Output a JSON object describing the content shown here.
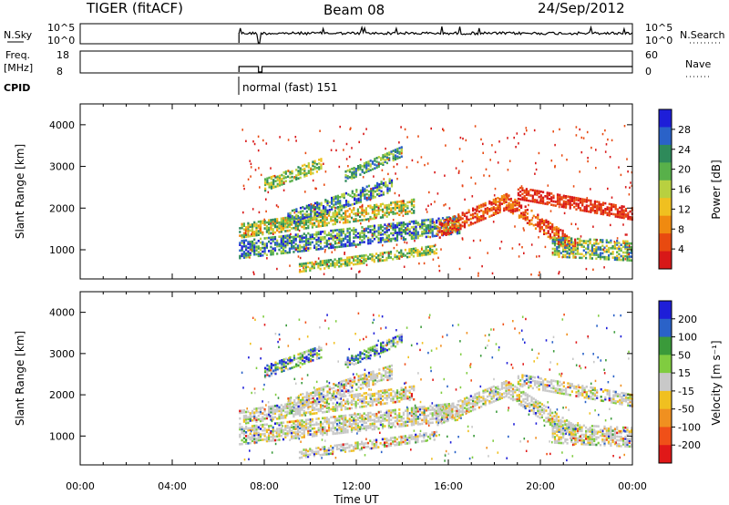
{
  "header": {
    "title": "TIGER (fitACF)",
    "beam": "Beam 08",
    "date": "24/Sep/2012"
  },
  "top_panels": {
    "nsky_label": "N.Sky",
    "nsky_ticks": [
      "10^5",
      "10^0"
    ],
    "nsearch_label": "N.Search",
    "nsearch_ticks": [
      "10^5",
      "10^0"
    ],
    "freq_label": "Freq.",
    "freq_unit": "[MHz]",
    "freq_ticks": [
      "18",
      "8"
    ],
    "nave_label": "Nave",
    "nave_ticks": [
      "60",
      "0"
    ],
    "cpid_label": "CPID",
    "cpid_text": "normal (fast) 151"
  },
  "colors": {
    "power_scale": [
      "#1e1ed8",
      "#2a62c8",
      "#2e8a5a",
      "#58b04a",
      "#b8d040",
      "#f0c020",
      "#f08a10",
      "#e84a10",
      "#d81818"
    ],
    "velocity_scale": [
      "#1e1ed8",
      "#2a62c8",
      "#3a9a3a",
      "#80cc40",
      "#c8c8c8",
      "#f0c020",
      "#f09020",
      "#f05018",
      "#e01818"
    ]
  },
  "chart_data": [
    {
      "type": "heatmap",
      "name": "power",
      "ylabel": "Slant Range [km]",
      "yticks": [
        "1000",
        "2000",
        "3000",
        "4000"
      ],
      "ylim": [
        300,
        4500
      ],
      "xlim": [
        0,
        24
      ],
      "colorbar_label": "Power [dB]",
      "colorbar_ticks": [
        "28",
        "24",
        "20",
        "16",
        "12",
        "8",
        "4"
      ]
    },
    {
      "type": "heatmap",
      "name": "velocity",
      "ylabel": "Slant Range [km]",
      "yticks": [
        "1000",
        "2000",
        "3000",
        "4000"
      ],
      "ylim": [
        300,
        4500
      ],
      "xlim": [
        0,
        24
      ],
      "xlabel": "Time UT",
      "xticks": [
        "00:00",
        "04:00",
        "08:00",
        "12:00",
        "16:00",
        "20:00",
        "00:00"
      ],
      "colorbar_label": "Velocity [m s⁻¹]",
      "colorbar_ticks": [
        "200",
        "100",
        "50",
        "15",
        "-15",
        "-50",
        "-100",
        "-200"
      ]
    }
  ]
}
